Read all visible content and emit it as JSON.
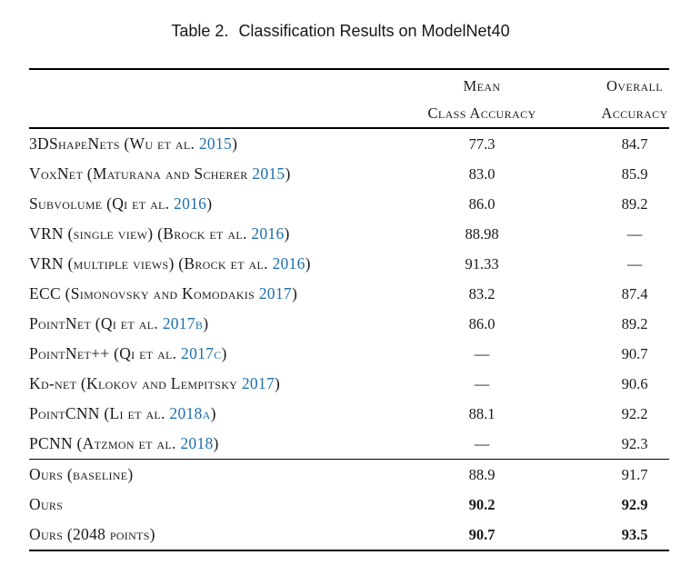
{
  "caption": {
    "label": "Table 2.",
    "text": "Classification Results on ModelNet40"
  },
  "header": {
    "mean_line1": "Mean",
    "mean_line2": "Class Accuracy",
    "overall_line1": "Overall",
    "overall_line2": "Accuracy"
  },
  "table": {
    "sections": [
      {
        "rows": [
          {
            "pre": "3DShapeNets (Wu et al. ",
            "year": "2015",
            "post": ")",
            "mean": "77.3",
            "overall": "84.7",
            "bold": false
          },
          {
            "pre": "VoxNet (Maturana and Scherer ",
            "year": "2015",
            "post": ")",
            "mean": "83.0",
            "overall": "85.9",
            "bold": false
          },
          {
            "pre": "Subvolume (Qi et al. ",
            "year": "2016",
            "post": ")",
            "mean": "86.0",
            "overall": "89.2",
            "bold": false
          },
          {
            "pre": "VRN (single view) (Brock et al. ",
            "year": "2016",
            "post": ")",
            "mean": "88.98",
            "overall": "—",
            "bold": false
          },
          {
            "pre": "VRN (multiple views) (Brock et al. ",
            "year": "2016",
            "post": ")",
            "mean": "91.33",
            "overall": "—",
            "bold": false
          },
          {
            "pre": "ECC (Simonovsky and Komodakis ",
            "year": "2017",
            "post": ")",
            "mean": "83.2",
            "overall": "87.4",
            "bold": false
          },
          {
            "pre": "PointNet (Qi et al. ",
            "year": "2017b",
            "post": ")",
            "mean": "86.0",
            "overall": "89.2",
            "bold": false
          },
          {
            "pre": "PointNet++ (Qi et al. ",
            "year": "2017c",
            "post": ")",
            "mean": "—",
            "overall": "90.7",
            "bold": false
          },
          {
            "pre": "Kd-net (Klokov and Lempitsky ",
            "year": "2017",
            "post": ")",
            "mean": "—",
            "overall": "90.6",
            "bold": false
          },
          {
            "pre": "PointCNN (Li et al. ",
            "year": "2018a",
            "post": ")",
            "mean": "88.1",
            "overall": "92.2",
            "bold": false
          },
          {
            "pre": "PCNN (Atzmon et al. ",
            "year": "2018",
            "post": ")",
            "mean": "—",
            "overall": "92.3",
            "bold": false
          }
        ]
      },
      {
        "rows": [
          {
            "pre": "Ours (baseline)",
            "year": "",
            "post": "",
            "mean": "88.9",
            "overall": "91.7",
            "bold": false
          },
          {
            "pre": "Ours",
            "year": "",
            "post": "",
            "mean": "90.2",
            "overall": "92.9",
            "bold": true
          },
          {
            "pre": "Ours (2048 points)",
            "year": "",
            "post": "",
            "mean": "90.7",
            "overall": "93.5",
            "bold": true
          }
        ]
      }
    ]
  },
  "colors": {
    "citation_blue": "#1e6fae",
    "text": "#1a1a1a",
    "rule": "#000000"
  }
}
